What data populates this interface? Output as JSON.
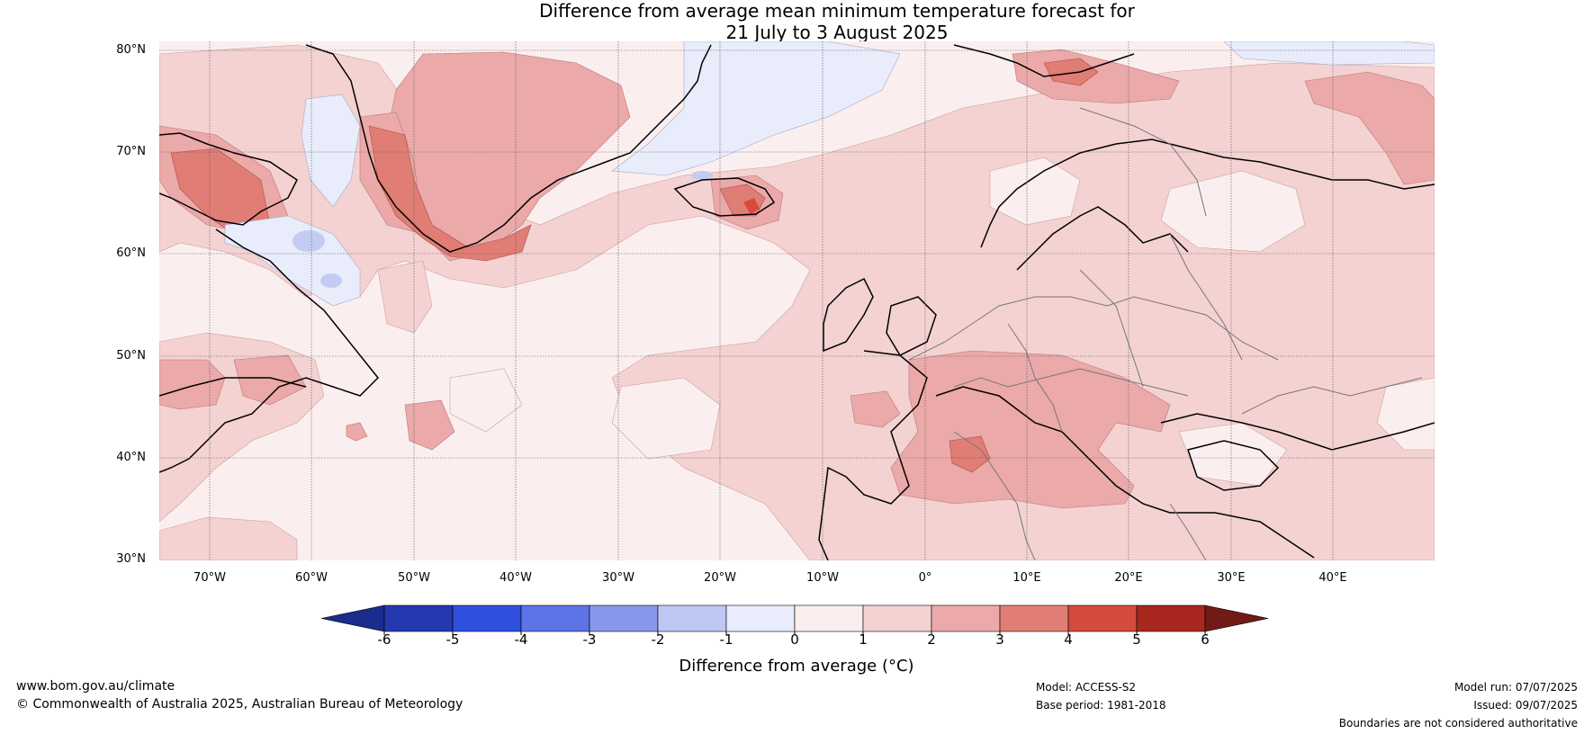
{
  "title": {
    "line1": "Difference from average mean minimum temperature forecast for",
    "line2": "21 July to 3 August 2025"
  },
  "map": {
    "lat_labels": [
      "80°N",
      "70°N",
      "60°N",
      "50°N",
      "40°N",
      "30°N"
    ],
    "lon_labels": [
      "70°W",
      "60°W",
      "50°W",
      "40°W",
      "30°W",
      "20°W",
      "10°W",
      "0°",
      "10°E",
      "20°E",
      "30°E",
      "40°E"
    ],
    "colors": {
      "ocean_base": "#fbeeee",
      "band_0_1": "#fbeeee",
      "band_1_2": "#f4d2d2",
      "band_2_3": "#eba9a9",
      "band_3_4": "#e07d74",
      "band_4_5": "#d6493d",
      "band_neg_1_0": "#e8ecfb",
      "band_neg_2_neg_1": "#c3cbf3",
      "coast": "#000000",
      "border": "#777777",
      "grid": "#555555"
    }
  },
  "colorbar": {
    "ticks": [
      "-6",
      "-5",
      "-4",
      "-3",
      "-2",
      "-1",
      "0",
      "1",
      "2",
      "3",
      "4",
      "5",
      "6"
    ],
    "colors": [
      "#1a2c8c",
      "#2438b0",
      "#2f4fde",
      "#5c74e6",
      "#8798ec",
      "#bfc8f4",
      "#e8ecfb",
      "#fbeeee",
      "#f4d2d2",
      "#eba9a9",
      "#e07d74",
      "#d6493d",
      "#a8271f",
      "#721a15"
    ],
    "label": "Difference from average (°C)"
  },
  "footer": {
    "website": "www.bom.gov.au/climate",
    "copyright": "© Commonwealth of Australia 2025, Australian Bureau of Meteorology",
    "model": "Model: ACCESS-S2",
    "base_period": "Base period: 1981-2018",
    "model_run": "Model run: 07/07/2025",
    "issued": "Issued: 09/07/2025",
    "disclaimer": "Boundaries are not considered authoritative"
  }
}
